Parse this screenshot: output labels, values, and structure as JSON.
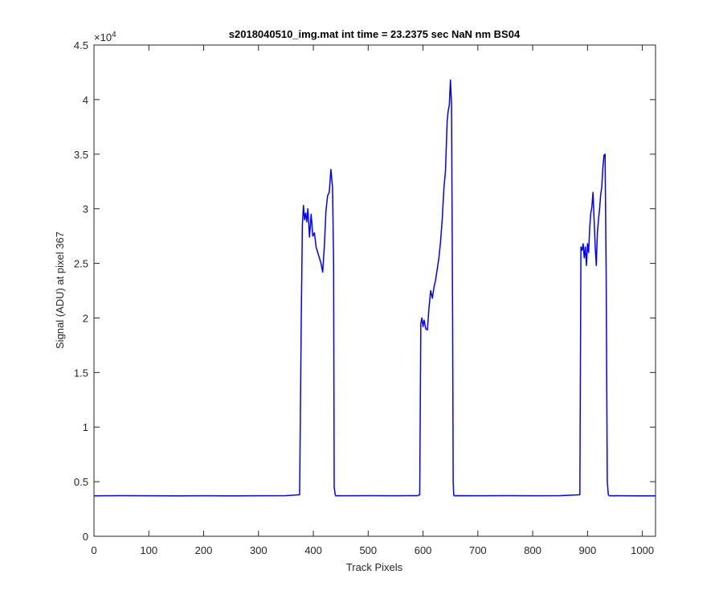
{
  "chart_data": {
    "type": "line",
    "title": "s2018040510_img.mat int time = 23.2375 sec  NaN nm BS04",
    "xlabel": "Track Pixels",
    "ylabel": "Signal (ADU) at pixel 367",
    "y_exponent_label": "×10",
    "y_exponent_power": "4",
    "y_multiplier": 10000,
    "xlim": [
      0,
      1024
    ],
    "ylim": [
      0,
      45000
    ],
    "xticks": [
      0,
      100,
      200,
      300,
      400,
      500,
      600,
      700,
      800,
      900,
      1000
    ],
    "xtick_labels": [
      "0",
      "100",
      "200",
      "300",
      "400",
      "500",
      "600",
      "700",
      "800",
      "900",
      "1000"
    ],
    "yticks": [
      0,
      5000,
      10000,
      15000,
      20000,
      25000,
      30000,
      35000,
      40000,
      45000
    ],
    "ytick_labels": [
      "0",
      "0.5",
      "1",
      "1.5",
      "2",
      "2.5",
      "3",
      "3.5",
      "4",
      "4.5"
    ],
    "grid": false,
    "colors": {
      "series": "#0000ff",
      "axes": "#262626",
      "background": "#ffffff"
    },
    "series": [
      {
        "x": [
          0,
          50,
          100,
          150,
          200,
          250,
          300,
          350,
          375,
          378,
          380,
          382,
          384,
          386,
          388,
          390,
          393,
          396,
          399,
          402,
          405,
          408,
          411,
          414,
          417,
          420,
          423,
          426,
          429,
          432,
          435,
          437,
          438,
          440,
          441,
          443,
          450,
          500,
          550,
          590,
          594,
          596,
          598,
          600,
          602,
          605,
          608,
          611,
          614,
          617,
          620,
          623,
          626,
          629,
          632,
          635,
          638,
          641,
          644,
          646,
          648,
          650,
          652,
          654,
          655,
          656,
          657,
          660,
          700,
          750,
          800,
          850,
          886,
          888,
          890,
          892,
          894,
          896,
          898,
          900,
          902,
          904,
          906,
          908,
          910,
          912,
          914,
          916,
          918,
          920,
          922,
          924,
          926,
          928,
          930,
          932,
          934,
          936,
          938,
          940,
          942,
          944,
          946,
          948,
          949,
          950,
          952,
          960,
          1000,
          1024
        ],
        "y": [
          3700,
          3720,
          3710,
          3700,
          3710,
          3700,
          3710,
          3720,
          3800,
          20000,
          28500,
          30300,
          29000,
          29600,
          28800,
          30000,
          27400,
          29500,
          27500,
          27800,
          26500,
          26000,
          25500,
          25000,
          24200,
          26500,
          29800,
          31200,
          31500,
          33600,
          32000,
          25000,
          4500,
          3800,
          3700,
          3720,
          3710,
          3720,
          3710,
          3720,
          3800,
          19500,
          20000,
          19200,
          19800,
          19000,
          18900,
          21000,
          22500,
          21800,
          22800,
          23500,
          24500,
          25500,
          27000,
          29000,
          31800,
          33500,
          38000,
          39000,
          39500,
          41800,
          39500,
          20000,
          5000,
          3800,
          3700,
          3720,
          3710,
          3720,
          3710,
          3720,
          3800,
          26500,
          26200,
          26800,
          25500,
          26500,
          24800,
          26800,
          26000,
          28300,
          29600,
          30200,
          31500,
          29000,
          26500,
          24800,
          27800,
          29000,
          30000,
          31300,
          32000,
          33800,
          34900,
          35000,
          24000,
          5000,
          3800,
          3700,
          3710,
          3720,
          3710,
          3700,
          3720,
          3700,
          3720,
          3710,
          3700,
          3700
        ]
      }
    ]
  }
}
